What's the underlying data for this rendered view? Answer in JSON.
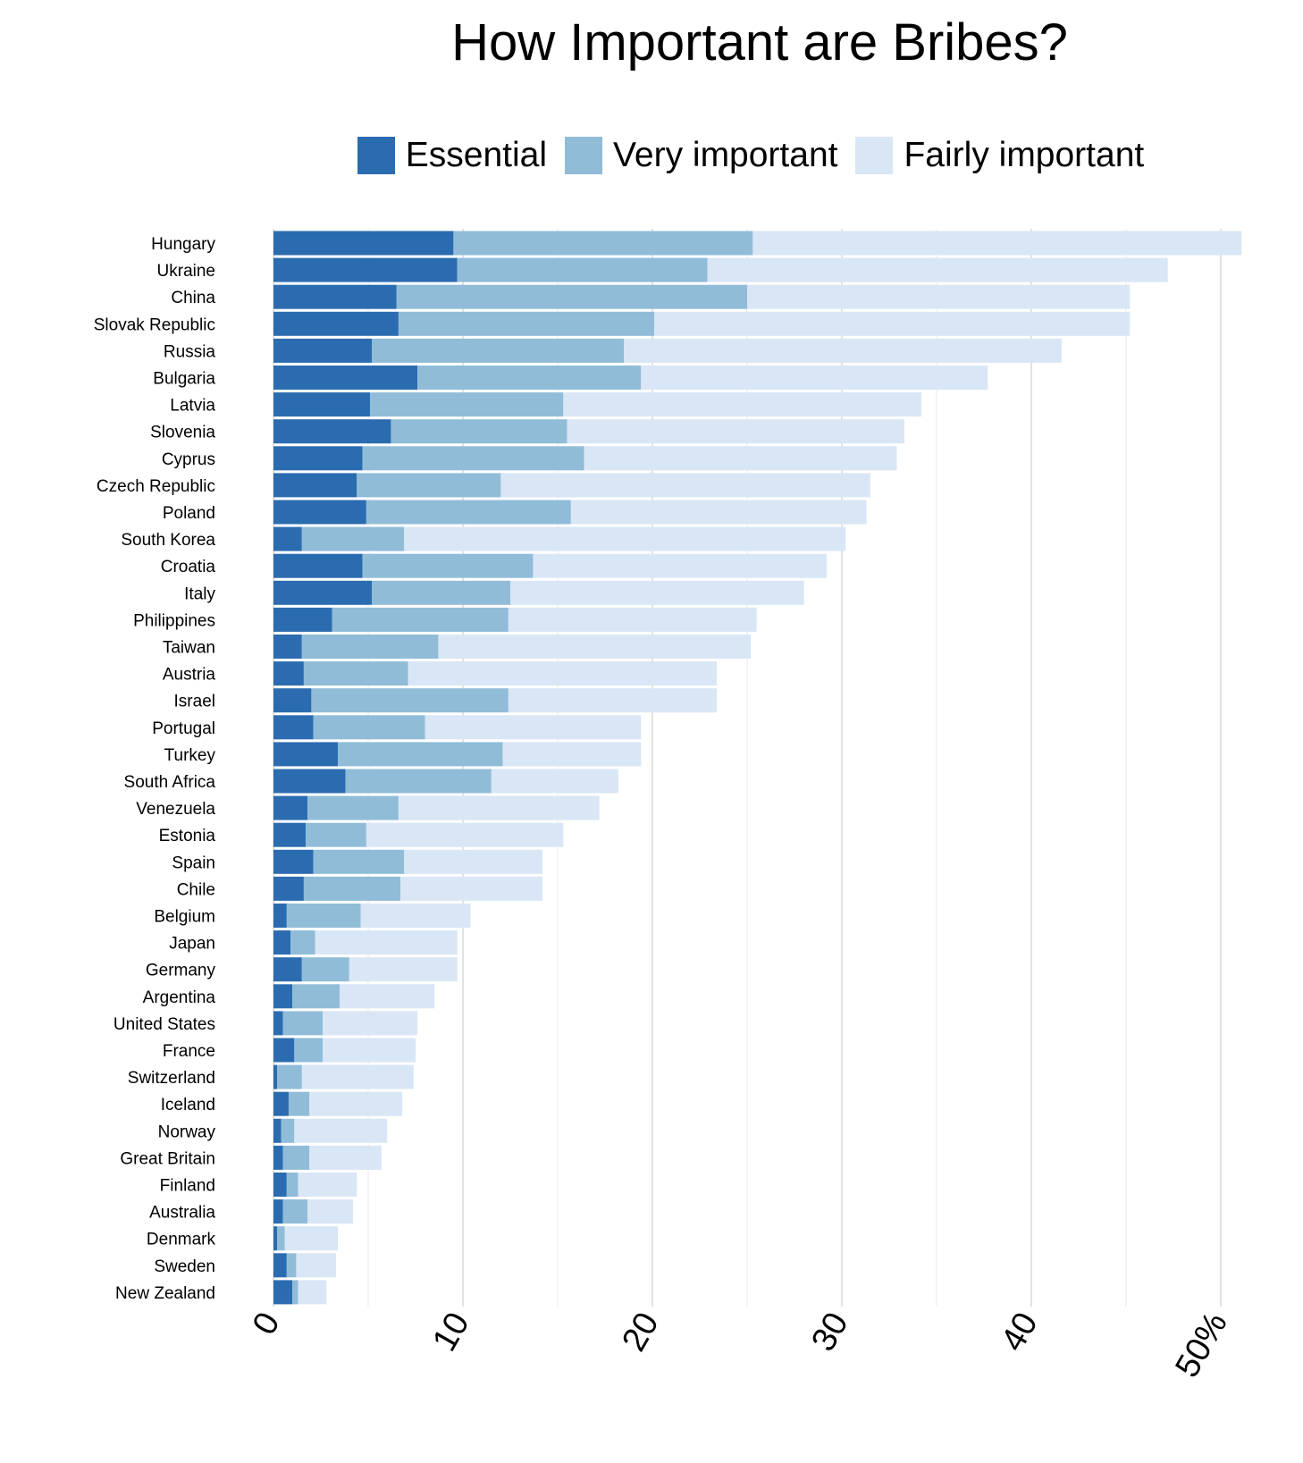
{
  "chart_data": {
    "type": "bar",
    "orientation": "horizontal",
    "stacked": true,
    "title": "How Important are Bribes?",
    "legend_position": "top",
    "xlim": [
      0,
      51
    ],
    "x_ticks": [
      "0",
      "10",
      "20",
      "30",
      "40",
      "50%"
    ],
    "x_tick_values": [
      0,
      10,
      20,
      30,
      40,
      50
    ],
    "grid": true,
    "categories": [
      "Hungary",
      "Ukraine",
      "China",
      "Slovak Republic",
      "Russia",
      "Bulgaria",
      "Latvia",
      "Slovenia",
      "Cyprus",
      "Czech Republic",
      "Poland",
      "South Korea",
      "Croatia",
      "Italy",
      "Philippines",
      "Taiwan",
      "Austria",
      "Israel",
      "Portugal",
      "Turkey",
      "South Africa",
      "Venezuela",
      "Estonia",
      "Spain",
      "Chile",
      "Belgium",
      "Japan",
      "Germany",
      "Argentina",
      "United States",
      "France",
      "Switzerland",
      "Iceland",
      "Norway",
      "Great Britain",
      "Finland",
      "Australia",
      "Denmark",
      "Sweden",
      "New Zealand"
    ],
    "series": [
      {
        "name": "Essential",
        "color": "#2b6cb0",
        "values": [
          9.5,
          9.7,
          6.5,
          6.6,
          5.2,
          7.6,
          5.1,
          6.2,
          4.7,
          4.4,
          4.9,
          1.5,
          4.7,
          5.2,
          3.1,
          1.5,
          1.6,
          2.0,
          2.1,
          3.4,
          3.8,
          1.8,
          1.7,
          2.1,
          1.6,
          0.7,
          0.9,
          1.5,
          1.0,
          0.5,
          1.1,
          0.2,
          0.8,
          0.4,
          0.5,
          0.7,
          0.5,
          0.2,
          0.7,
          1.0
        ]
      },
      {
        "name": "Very important",
        "color": "#90bcd8",
        "values": [
          15.8,
          13.2,
          18.5,
          13.5,
          13.3,
          11.8,
          10.2,
          9.3,
          11.7,
          7.6,
          10.8,
          5.4,
          9.0,
          7.3,
          9.3,
          7.2,
          5.5,
          10.4,
          5.9,
          8.7,
          7.7,
          4.8,
          3.2,
          4.8,
          5.1,
          3.9,
          1.3,
          2.5,
          2.5,
          2.1,
          1.5,
          1.3,
          1.1,
          0.7,
          1.4,
          0.6,
          1.3,
          0.4,
          0.5,
          0.3
        ]
      },
      {
        "name": "Fairly important",
        "color": "#d9e6f5",
        "values": [
          25.8,
          24.3,
          20.2,
          25.1,
          23.1,
          18.3,
          18.9,
          17.8,
          16.5,
          19.5,
          15.6,
          23.3,
          15.5,
          15.5,
          13.1,
          16.5,
          16.3,
          11.0,
          11.4,
          7.3,
          6.7,
          10.6,
          10.4,
          7.3,
          7.5,
          5.8,
          7.5,
          5.7,
          5.0,
          5.0,
          4.9,
          5.9,
          4.9,
          4.9,
          3.8,
          3.1,
          2.4,
          2.8,
          2.1,
          1.5
        ]
      }
    ]
  }
}
